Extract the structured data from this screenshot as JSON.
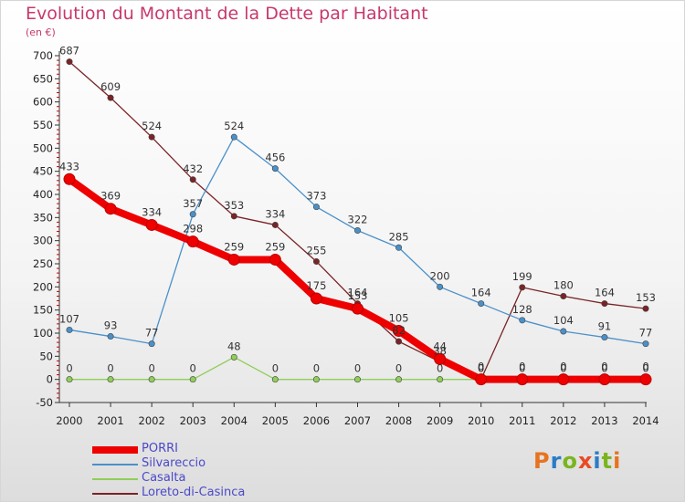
{
  "title": "Evolution du Montant de la Dette par Habitant",
  "subtitle": "(en €)",
  "logo": {
    "text": "Proxiti",
    "colors": [
      "#e8731f",
      "#2a7cc7",
      "#7ab51d",
      "#e84a25",
      "#2a7cc7",
      "#7ab51d",
      "#e8731f"
    ]
  },
  "chart_data": {
    "type": "line",
    "xlabel": "",
    "ylabel": "",
    "ylim": [
      -50,
      700
    ],
    "yticks": [
      -50,
      0,
      50,
      100,
      150,
      200,
      250,
      300,
      350,
      400,
      450,
      500,
      550,
      600,
      650,
      700
    ],
    "x": [
      "2000",
      "2001",
      "2002",
      "2003",
      "2004",
      "2005",
      "2006",
      "2007",
      "2008",
      "2009",
      "2010",
      "2011",
      "2012",
      "2013",
      "2014"
    ],
    "grid": false,
    "legend_position": "bottom-left",
    "series": [
      {
        "name": "Loreto-di-Casinca",
        "color": "#7b2326",
        "values": [
          687,
          609,
          524,
          432,
          353,
          334,
          255,
          164,
          82,
          38,
          0,
          199,
          180,
          164,
          153
        ],
        "labels": [
          "687",
          "609",
          "524",
          "432",
          "353",
          "334",
          "255",
          "164",
          "82",
          "38",
          "0",
          "199",
          "180",
          "164",
          "153"
        ]
      },
      {
        "name": "Silvareccio",
        "color": "#4a90c9",
        "values": [
          107,
          93,
          77,
          357,
          524,
          456,
          373,
          322,
          285,
          200,
          164,
          128,
          104,
          91,
          77
        ],
        "labels": [
          "107",
          "93",
          "77",
          "357",
          "524",
          "456",
          "373",
          "322",
          "285",
          "200",
          "164",
          "128",
          "104",
          "91",
          "77"
        ]
      },
      {
        "name": "Casalta",
        "color": "#8fce58",
        "values": [
          0,
          0,
          0,
          0,
          48,
          0,
          0,
          0,
          0,
          0,
          0,
          0,
          0,
          0,
          0
        ],
        "labels": [
          "0",
          "0",
          "0",
          "0",
          "48",
          "0",
          "0",
          "0",
          "0",
          "0",
          "0",
          "0",
          "0",
          "0",
          "0"
        ]
      },
      {
        "name": "PORRI",
        "color": "#ee0000",
        "values": [
          433,
          369,
          334,
          298,
          259,
          259,
          175,
          153,
          105,
          44,
          0,
          0,
          0,
          0,
          0
        ],
        "labels": [
          "433",
          "369",
          "334",
          "298",
          "259",
          "259",
          "175",
          "153",
          "105",
          "44",
          "0",
          "0",
          "0",
          "0",
          "0"
        ]
      }
    ],
    "legend_order": [
      "PORRI",
      "Silvareccio",
      "Casalta",
      "Loreto-di-Casinca"
    ]
  }
}
